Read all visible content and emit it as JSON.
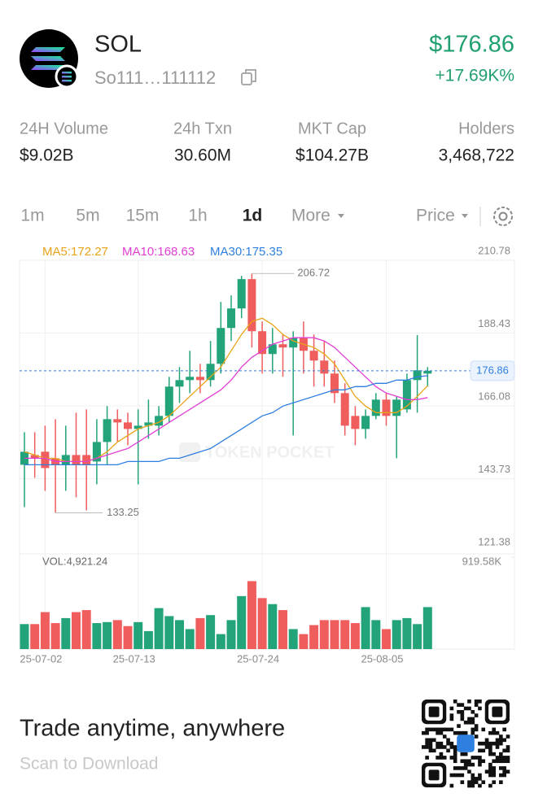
{
  "header": {
    "symbol": "SOL",
    "address": "So111…111112",
    "price": "$176.86",
    "change": "+17.69K%"
  },
  "stats": [
    {
      "label": "24H Volume",
      "value": "$9.02B"
    },
    {
      "label": "24h Txn",
      "value": "30.60M"
    },
    {
      "label": "MKT Cap",
      "value": "$104.27B"
    },
    {
      "label": "Holders",
      "value": "3,468,722"
    }
  ],
  "tabs": {
    "intervals": [
      "1m",
      "5m",
      "15m",
      "1h",
      "1d"
    ],
    "more": "More",
    "mode": "Price"
  },
  "chart_data": {
    "type": "candlestick",
    "watermark": "TOKEN POCKET",
    "categories": [
      null,
      null,
      "25-07-02",
      null,
      null,
      null,
      null,
      null,
      null,
      null,
      null,
      "25-07-13",
      null,
      null,
      null,
      null,
      null,
      null,
      null,
      null,
      null,
      null,
      null,
      "25-07-24",
      null,
      null,
      null,
      null,
      null,
      null,
      null,
      null,
      null,
      null,
      null,
      "25-08-05",
      null,
      null,
      null,
      null
    ],
    "open": [
      148,
      151,
      152,
      150,
      148,
      151,
      151,
      149,
      155,
      162,
      161,
      159,
      160,
      160,
      163,
      172,
      174,
      175,
      174,
      179,
      190,
      196,
      205,
      189,
      182,
      185,
      184,
      187,
      183,
      180,
      176,
      170,
      163,
      159,
      163,
      168,
      163,
      165,
      174,
      176
    ],
    "high": [
      158,
      158,
      160,
      162,
      160,
      164,
      165,
      162,
      166,
      165,
      164,
      165,
      168,
      166,
      175,
      178,
      183,
      179,
      186,
      198,
      200,
      206,
      206.72,
      192,
      190,
      188,
      189,
      192,
      188,
      186,
      180,
      173,
      166,
      165,
      170,
      170,
      169,
      176,
      187.8,
      178
    ],
    "low": [
      135,
      144,
      140,
      133.25,
      140,
      138,
      134,
      142,
      148,
      155,
      154,
      142,
      156,
      157,
      161,
      167,
      170,
      170,
      172,
      176,
      186,
      193,
      184,
      176,
      176,
      175,
      157,
      176,
      172,
      172,
      167,
      157,
      154,
      156,
      162,
      160,
      150,
      164,
      164,
      172
    ],
    "close": [
      152,
      150,
      147,
      148,
      151,
      148,
      148,
      155,
      162,
      161,
      159,
      160,
      161,
      163,
      172,
      174,
      175,
      174,
      179,
      190,
      196,
      205,
      189,
      182,
      185,
      184,
      187,
      183,
      180,
      176,
      170,
      160,
      159,
      163,
      168,
      163,
      168,
      174,
      177,
      176.86
    ],
    "up_color": "#22a37a",
    "down_color": "#ef5d5d",
    "series": [
      {
        "name": "MA5:172.27",
        "color": "#e8a417",
        "values": [
          152,
          151,
          150,
          150,
          149,
          149,
          149,
          150,
          152,
          155,
          157,
          159,
          160,
          161,
          163,
          166,
          169,
          172,
          175,
          178,
          183,
          188,
          192,
          193,
          191,
          188,
          186,
          185,
          184,
          182,
          179,
          174,
          169,
          166,
          164,
          164,
          164,
          166,
          169,
          172.27
        ]
      },
      {
        "name": "MA10:168.63",
        "color": "#e03fd3",
        "values": [
          150,
          150,
          150,
          149,
          149,
          149,
          149,
          150,
          151,
          152,
          153,
          155,
          157,
          159,
          161,
          163,
          165,
          167,
          169,
          171,
          174,
          178,
          181,
          183,
          185,
          186,
          187,
          187,
          187,
          186,
          184,
          181,
          178,
          175,
          172,
          170,
          169,
          168,
          168,
          168.63
        ]
      },
      {
        "name": "MA30:175.35",
        "color": "#2f7fe0",
        "values": [
          148,
          148,
          148,
          148,
          148,
          148,
          148,
          148,
          148,
          148,
          149,
          149,
          149,
          149,
          150,
          150,
          151,
          152,
          153,
          155,
          157,
          159,
          161,
          163,
          164,
          166,
          167,
          168,
          169,
          170,
          171,
          171,
          172,
          172,
          173,
          173,
          174,
          174,
          175,
          175.35
        ]
      }
    ],
    "ylim": [
      121.38,
      210.78
    ],
    "yticks": [
      210.78,
      188.43,
      166.08,
      143.73,
      121.38
    ],
    "grid": true,
    "max_marker": 206.72,
    "min_marker": 133.25,
    "last_price": 176.86,
    "volume_label": "VOL:4,921.24",
    "volume": [
      250,
      250,
      370,
      260,
      310,
      370,
      390,
      260,
      270,
      290,
      230,
      270,
      180,
      410,
      330,
      290,
      200,
      310,
      340,
      150,
      290,
      530,
      680,
      510,
      450,
      390,
      200,
      150,
      240,
      290,
      290,
      290,
      260,
      420,
      290,
      200,
      290,
      310,
      250,
      420
    ],
    "volume_ylim": [
      0,
      919.58
    ],
    "volume_yticks": [
      {
        "value": 919.58,
        "label": "919.58K"
      }
    ]
  },
  "footer": {
    "headline": "Trade anytime, anywhere",
    "subline": "Scan to Download"
  }
}
